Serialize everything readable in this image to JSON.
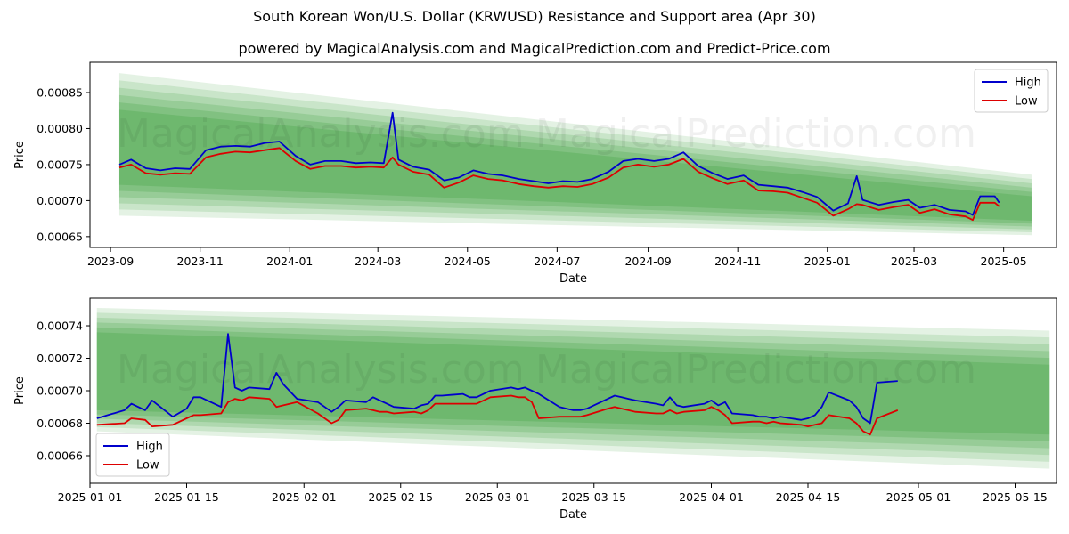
{
  "title": "South Korean Won/U.S. Dollar (KRWUSD) Resistance and Support area (Apr 30)",
  "subtitle": "powered by MagicalAnalysis.com and MagicalPrediction.com and Predict-Price.com",
  "watermarks": [
    "MagicalAnalysis.com",
    "MagicalPrediction.com"
  ],
  "colors": {
    "high": "#0000cc",
    "low": "#dd0000",
    "band": "#2e9a2e"
  },
  "chart_data": [
    {
      "type": "line",
      "xlabel": "Date",
      "ylabel": "Price",
      "xlim": [
        "2023-08-18",
        "2025-06-06"
      ],
      "ylim": [
        0.000635,
        0.000892
      ],
      "x_ticks": [
        "2023-09",
        "2023-11",
        "2024-01",
        "2024-03",
        "2024-05",
        "2024-07",
        "2024-09",
        "2024-11",
        "2025-01",
        "2025-03",
        "2025-05"
      ],
      "y_ticks": [
        "0.00065",
        "0.00070",
        "0.00075",
        "0.00080",
        "0.00085"
      ],
      "legend": "top-right",
      "grid": false,
      "bands": {
        "x": [
          "2023-09-07",
          "2025-05-20"
        ],
        "top_outer": [
          0.000877,
          0.000736
        ],
        "top_inner": [
          0.000826,
          0.000706
        ],
        "bottom_inner": [
          0.000722,
          0.000672
        ],
        "bottom_outer": [
          0.000679,
          0.000652
        ]
      },
      "series": [
        {
          "name": "High",
          "x": [
            "2023-09-07",
            "2023-09-15",
            "2023-09-25",
            "2023-10-05",
            "2023-10-15",
            "2023-10-25",
            "2023-11-05",
            "2023-11-15",
            "2023-11-25",
            "2023-12-05",
            "2023-12-15",
            "2023-12-25",
            "2024-01-05",
            "2024-01-15",
            "2024-01-25",
            "2024-02-05",
            "2024-02-15",
            "2024-02-25",
            "2024-03-05",
            "2024-03-11",
            "2024-03-15",
            "2024-03-25",
            "2024-04-05",
            "2024-04-15",
            "2024-04-25",
            "2024-05-05",
            "2024-05-15",
            "2024-05-25",
            "2024-06-05",
            "2024-06-15",
            "2024-06-25",
            "2024-07-05",
            "2024-07-15",
            "2024-07-25",
            "2024-08-05",
            "2024-08-15",
            "2024-08-25",
            "2024-09-05",
            "2024-09-15",
            "2024-09-25",
            "2024-10-05",
            "2024-10-15",
            "2024-10-25",
            "2024-11-05",
            "2024-11-15",
            "2024-11-25",
            "2024-12-05",
            "2024-12-15",
            "2024-12-25",
            "2025-01-05",
            "2025-01-15",
            "2025-01-21",
            "2025-01-25",
            "2025-02-05",
            "2025-02-15",
            "2025-02-25",
            "2025-03-05",
            "2025-03-15",
            "2025-03-25",
            "2025-04-05",
            "2025-04-10",
            "2025-04-15",
            "2025-04-25",
            "2025-04-28"
          ],
          "values": [
            0.00075,
            0.000757,
            0.000745,
            0.000742,
            0.000745,
            0.000744,
            0.00077,
            0.000775,
            0.000776,
            0.000775,
            0.00078,
            0.000782,
            0.000762,
            0.00075,
            0.000755,
            0.000755,
            0.000752,
            0.000753,
            0.000752,
            0.000822,
            0.000757,
            0.000747,
            0.000743,
            0.000728,
            0.000732,
            0.000742,
            0.000737,
            0.000735,
            0.00073,
            0.000727,
            0.000724,
            0.000727,
            0.000726,
            0.00073,
            0.00074,
            0.000755,
            0.000758,
            0.000755,
            0.000758,
            0.000767,
            0.000748,
            0.000738,
            0.00073,
            0.000735,
            0.000722,
            0.00072,
            0.000718,
            0.000712,
            0.000705,
            0.000686,
            0.000696,
            0.000734,
            0.000701,
            0.000694,
            0.000698,
            0.000701,
            0.00069,
            0.000694,
            0.000687,
            0.000685,
            0.00068,
            0.000706,
            0.000706,
            0.000697
          ]
        },
        {
          "name": "Low",
          "x": [
            "2023-09-07",
            "2023-09-15",
            "2023-09-25",
            "2023-10-05",
            "2023-10-15",
            "2023-10-25",
            "2023-11-05",
            "2023-11-15",
            "2023-11-25",
            "2023-12-05",
            "2023-12-15",
            "2023-12-25",
            "2024-01-05",
            "2024-01-15",
            "2024-01-25",
            "2024-02-05",
            "2024-02-15",
            "2024-02-25",
            "2024-03-05",
            "2024-03-11",
            "2024-03-15",
            "2024-03-25",
            "2024-04-05",
            "2024-04-15",
            "2024-04-25",
            "2024-05-05",
            "2024-05-15",
            "2024-05-25",
            "2024-06-05",
            "2024-06-15",
            "2024-06-25",
            "2024-07-05",
            "2024-07-15",
            "2024-07-25",
            "2024-08-05",
            "2024-08-15",
            "2024-08-25",
            "2024-09-05",
            "2024-09-15",
            "2024-09-25",
            "2024-10-05",
            "2024-10-15",
            "2024-10-25",
            "2024-11-05",
            "2024-11-15",
            "2024-11-25",
            "2024-12-05",
            "2024-12-15",
            "2024-12-25",
            "2025-01-05",
            "2025-01-15",
            "2025-01-21",
            "2025-01-25",
            "2025-02-05",
            "2025-02-15",
            "2025-02-25",
            "2025-03-05",
            "2025-03-15",
            "2025-03-25",
            "2025-04-05",
            "2025-04-10",
            "2025-04-15",
            "2025-04-25",
            "2025-04-28"
          ],
          "values": [
            0.000746,
            0.00075,
            0.000738,
            0.000736,
            0.000738,
            0.000737,
            0.00076,
            0.000765,
            0.000768,
            0.000767,
            0.00077,
            0.000773,
            0.000755,
            0.000744,
            0.000748,
            0.000748,
            0.000746,
            0.000747,
            0.000746,
            0.00076,
            0.00075,
            0.00074,
            0.000736,
            0.000718,
            0.000725,
            0.000735,
            0.00073,
            0.000728,
            0.000723,
            0.00072,
            0.000718,
            0.00072,
            0.000719,
            0.000723,
            0.000732,
            0.000746,
            0.00075,
            0.000747,
            0.00075,
            0.000758,
            0.00074,
            0.000731,
            0.000723,
            0.000728,
            0.000714,
            0.000713,
            0.000711,
            0.000704,
            0.000697,
            0.000679,
            0.000688,
            0.000695,
            0.000694,
            0.000687,
            0.000691,
            0.000694,
            0.000683,
            0.000688,
            0.000681,
            0.000678,
            0.000673,
            0.000697,
            0.000697,
            0.000692
          ]
        }
      ]
    },
    {
      "type": "line",
      "xlabel": "Date",
      "ylabel": "Price",
      "xlim": [
        "2025-01-01",
        "2025-05-21"
      ],
      "ylim": [
        0.000643,
        0.000757
      ],
      "x_ticks": [
        "2025-01-01",
        "2025-01-15",
        "2025-02-01",
        "2025-02-15",
        "2025-03-01",
        "2025-03-15",
        "2025-04-01",
        "2025-04-15",
        "2025-05-01",
        "2025-05-15"
      ],
      "y_ticks": [
        "0.00066",
        "0.00068",
        "0.00070",
        "0.00072",
        "0.00074"
      ],
      "legend": "bottom-left",
      "grid": false,
      "bands": {
        "x": [
          "2025-01-02",
          "2025-05-20"
        ],
        "top_outer": [
          0.000751,
          0.000737
        ],
        "top_inner": [
          0.000736,
          0.000716
        ],
        "bottom_inner": [
          0.000688,
          0.000673
        ],
        "bottom_outer": [
          0.000675,
          0.000652
        ]
      },
      "series": [
        {
          "name": "High",
          "x": [
            "2025-01-02",
            "2025-01-06",
            "2025-01-07",
            "2025-01-09",
            "2025-01-10",
            "2025-01-13",
            "2025-01-15",
            "2025-01-16",
            "2025-01-17",
            "2025-01-20",
            "2025-01-21",
            "2025-01-22",
            "2025-01-23",
            "2025-01-24",
            "2025-01-27",
            "2025-01-28",
            "2025-01-29",
            "2025-01-31",
            "2025-02-03",
            "2025-02-04",
            "2025-02-05",
            "2025-02-06",
            "2025-02-07",
            "2025-02-10",
            "2025-02-11",
            "2025-02-12",
            "2025-02-13",
            "2025-02-14",
            "2025-02-17",
            "2025-02-18",
            "2025-02-19",
            "2025-02-20",
            "2025-02-21",
            "2025-02-24",
            "2025-02-25",
            "2025-02-26",
            "2025-02-27",
            "2025-02-28",
            "2025-03-03",
            "2025-03-04",
            "2025-03-05",
            "2025-03-06",
            "2025-03-07",
            "2025-03-10",
            "2025-03-11",
            "2025-03-12",
            "2025-03-13",
            "2025-03-14",
            "2025-03-17",
            "2025-03-18",
            "2025-03-19",
            "2025-03-20",
            "2025-03-21",
            "2025-03-24",
            "2025-03-25",
            "2025-03-26",
            "2025-03-27",
            "2025-03-28",
            "2025-03-31",
            "2025-04-01",
            "2025-04-02",
            "2025-04-03",
            "2025-04-04",
            "2025-04-07",
            "2025-04-08",
            "2025-04-09",
            "2025-04-10",
            "2025-04-11",
            "2025-04-14",
            "2025-04-15",
            "2025-04-16",
            "2025-04-17",
            "2025-04-18",
            "2025-04-21",
            "2025-04-22",
            "2025-04-23",
            "2025-04-24",
            "2025-04-25",
            "2025-04-28"
          ],
          "values": [
            0.000683,
            0.000688,
            0.000692,
            0.000688,
            0.000694,
            0.000684,
            0.000689,
            0.000696,
            0.000696,
            0.00069,
            0.000735,
            0.000702,
            0.0007,
            0.000702,
            0.000701,
            0.000711,
            0.000704,
            0.000695,
            0.000693,
            0.00069,
            0.000687,
            0.00069,
            0.000694,
            0.000693,
            0.000696,
            0.000694,
            0.000692,
            0.00069,
            0.000689,
            0.000691,
            0.000692,
            0.000697,
            0.000697,
            0.000698,
            0.000696,
            0.000696,
            0.000698,
            0.0007,
            0.000702,
            0.000701,
            0.000702,
            0.0007,
            0.000698,
            0.00069,
            0.000689,
            0.000688,
            0.000688,
            0.000689,
            0.000695,
            0.000697,
            0.000696,
            0.000695,
            0.000694,
            0.000692,
            0.000691,
            0.000696,
            0.000691,
            0.00069,
            0.000692,
            0.000694,
            0.000691,
            0.000693,
            0.000686,
            0.000685,
            0.000684,
            0.000684,
            0.000683,
            0.000684,
            0.000682,
            0.000683,
            0.000685,
            0.00069,
            0.000699,
            0.000694,
            0.00069,
            0.000683,
            0.00068,
            0.000705,
            0.000706
          ]
        },
        {
          "name": "Low",
          "x": [
            "2025-01-02",
            "2025-01-06",
            "2025-01-07",
            "2025-01-09",
            "2025-01-10",
            "2025-01-13",
            "2025-01-15",
            "2025-01-16",
            "2025-01-17",
            "2025-01-20",
            "2025-01-21",
            "2025-01-22",
            "2025-01-23",
            "2025-01-24",
            "2025-01-27",
            "2025-01-28",
            "2025-01-29",
            "2025-01-31",
            "2025-02-03",
            "2025-02-04",
            "2025-02-05",
            "2025-02-06",
            "2025-02-07",
            "2025-02-10",
            "2025-02-11",
            "2025-02-12",
            "2025-02-13",
            "2025-02-14",
            "2025-02-17",
            "2025-02-18",
            "2025-02-19",
            "2025-02-20",
            "2025-02-21",
            "2025-02-24",
            "2025-02-25",
            "2025-02-26",
            "2025-02-27",
            "2025-02-28",
            "2025-03-03",
            "2025-03-04",
            "2025-03-05",
            "2025-03-06",
            "2025-03-07",
            "2025-03-10",
            "2025-03-11",
            "2025-03-12",
            "2025-03-13",
            "2025-03-14",
            "2025-03-17",
            "2025-03-18",
            "2025-03-19",
            "2025-03-20",
            "2025-03-21",
            "2025-03-24",
            "2025-03-25",
            "2025-03-26",
            "2025-03-27",
            "2025-03-28",
            "2025-03-31",
            "2025-04-01",
            "2025-04-02",
            "2025-04-03",
            "2025-04-04",
            "2025-04-07",
            "2025-04-08",
            "2025-04-09",
            "2025-04-10",
            "2025-04-11",
            "2025-04-14",
            "2025-04-15",
            "2025-04-16",
            "2025-04-17",
            "2025-04-18",
            "2025-04-21",
            "2025-04-22",
            "2025-04-23",
            "2025-04-24",
            "2025-04-25",
            "2025-04-28"
          ],
          "values": [
            0.000679,
            0.00068,
            0.000683,
            0.000682,
            0.000678,
            0.000679,
            0.000683,
            0.000685,
            0.000685,
            0.000686,
            0.000693,
            0.000695,
            0.000694,
            0.000696,
            0.000695,
            0.00069,
            0.000691,
            0.000693,
            0.000686,
            0.000683,
            0.00068,
            0.000682,
            0.000688,
            0.000689,
            0.000688,
            0.000687,
            0.000687,
            0.000686,
            0.000687,
            0.000686,
            0.000688,
            0.000692,
            0.000692,
            0.000692,
            0.000692,
            0.000692,
            0.000694,
            0.000696,
            0.000697,
            0.000696,
            0.000696,
            0.000693,
            0.000683,
            0.000684,
            0.000684,
            0.000684,
            0.000684,
            0.000685,
            0.000689,
            0.00069,
            0.000689,
            0.000688,
            0.000687,
            0.000686,
            0.000686,
            0.000688,
            0.000686,
            0.000687,
            0.000688,
            0.00069,
            0.000688,
            0.000685,
            0.00068,
            0.000681,
            0.000681,
            0.00068,
            0.000681,
            0.00068,
            0.000679,
            0.000678,
            0.000679,
            0.00068,
            0.000685,
            0.000683,
            0.00068,
            0.000675,
            0.000673,
            0.000683,
            0.000688
          ]
        }
      ]
    }
  ]
}
